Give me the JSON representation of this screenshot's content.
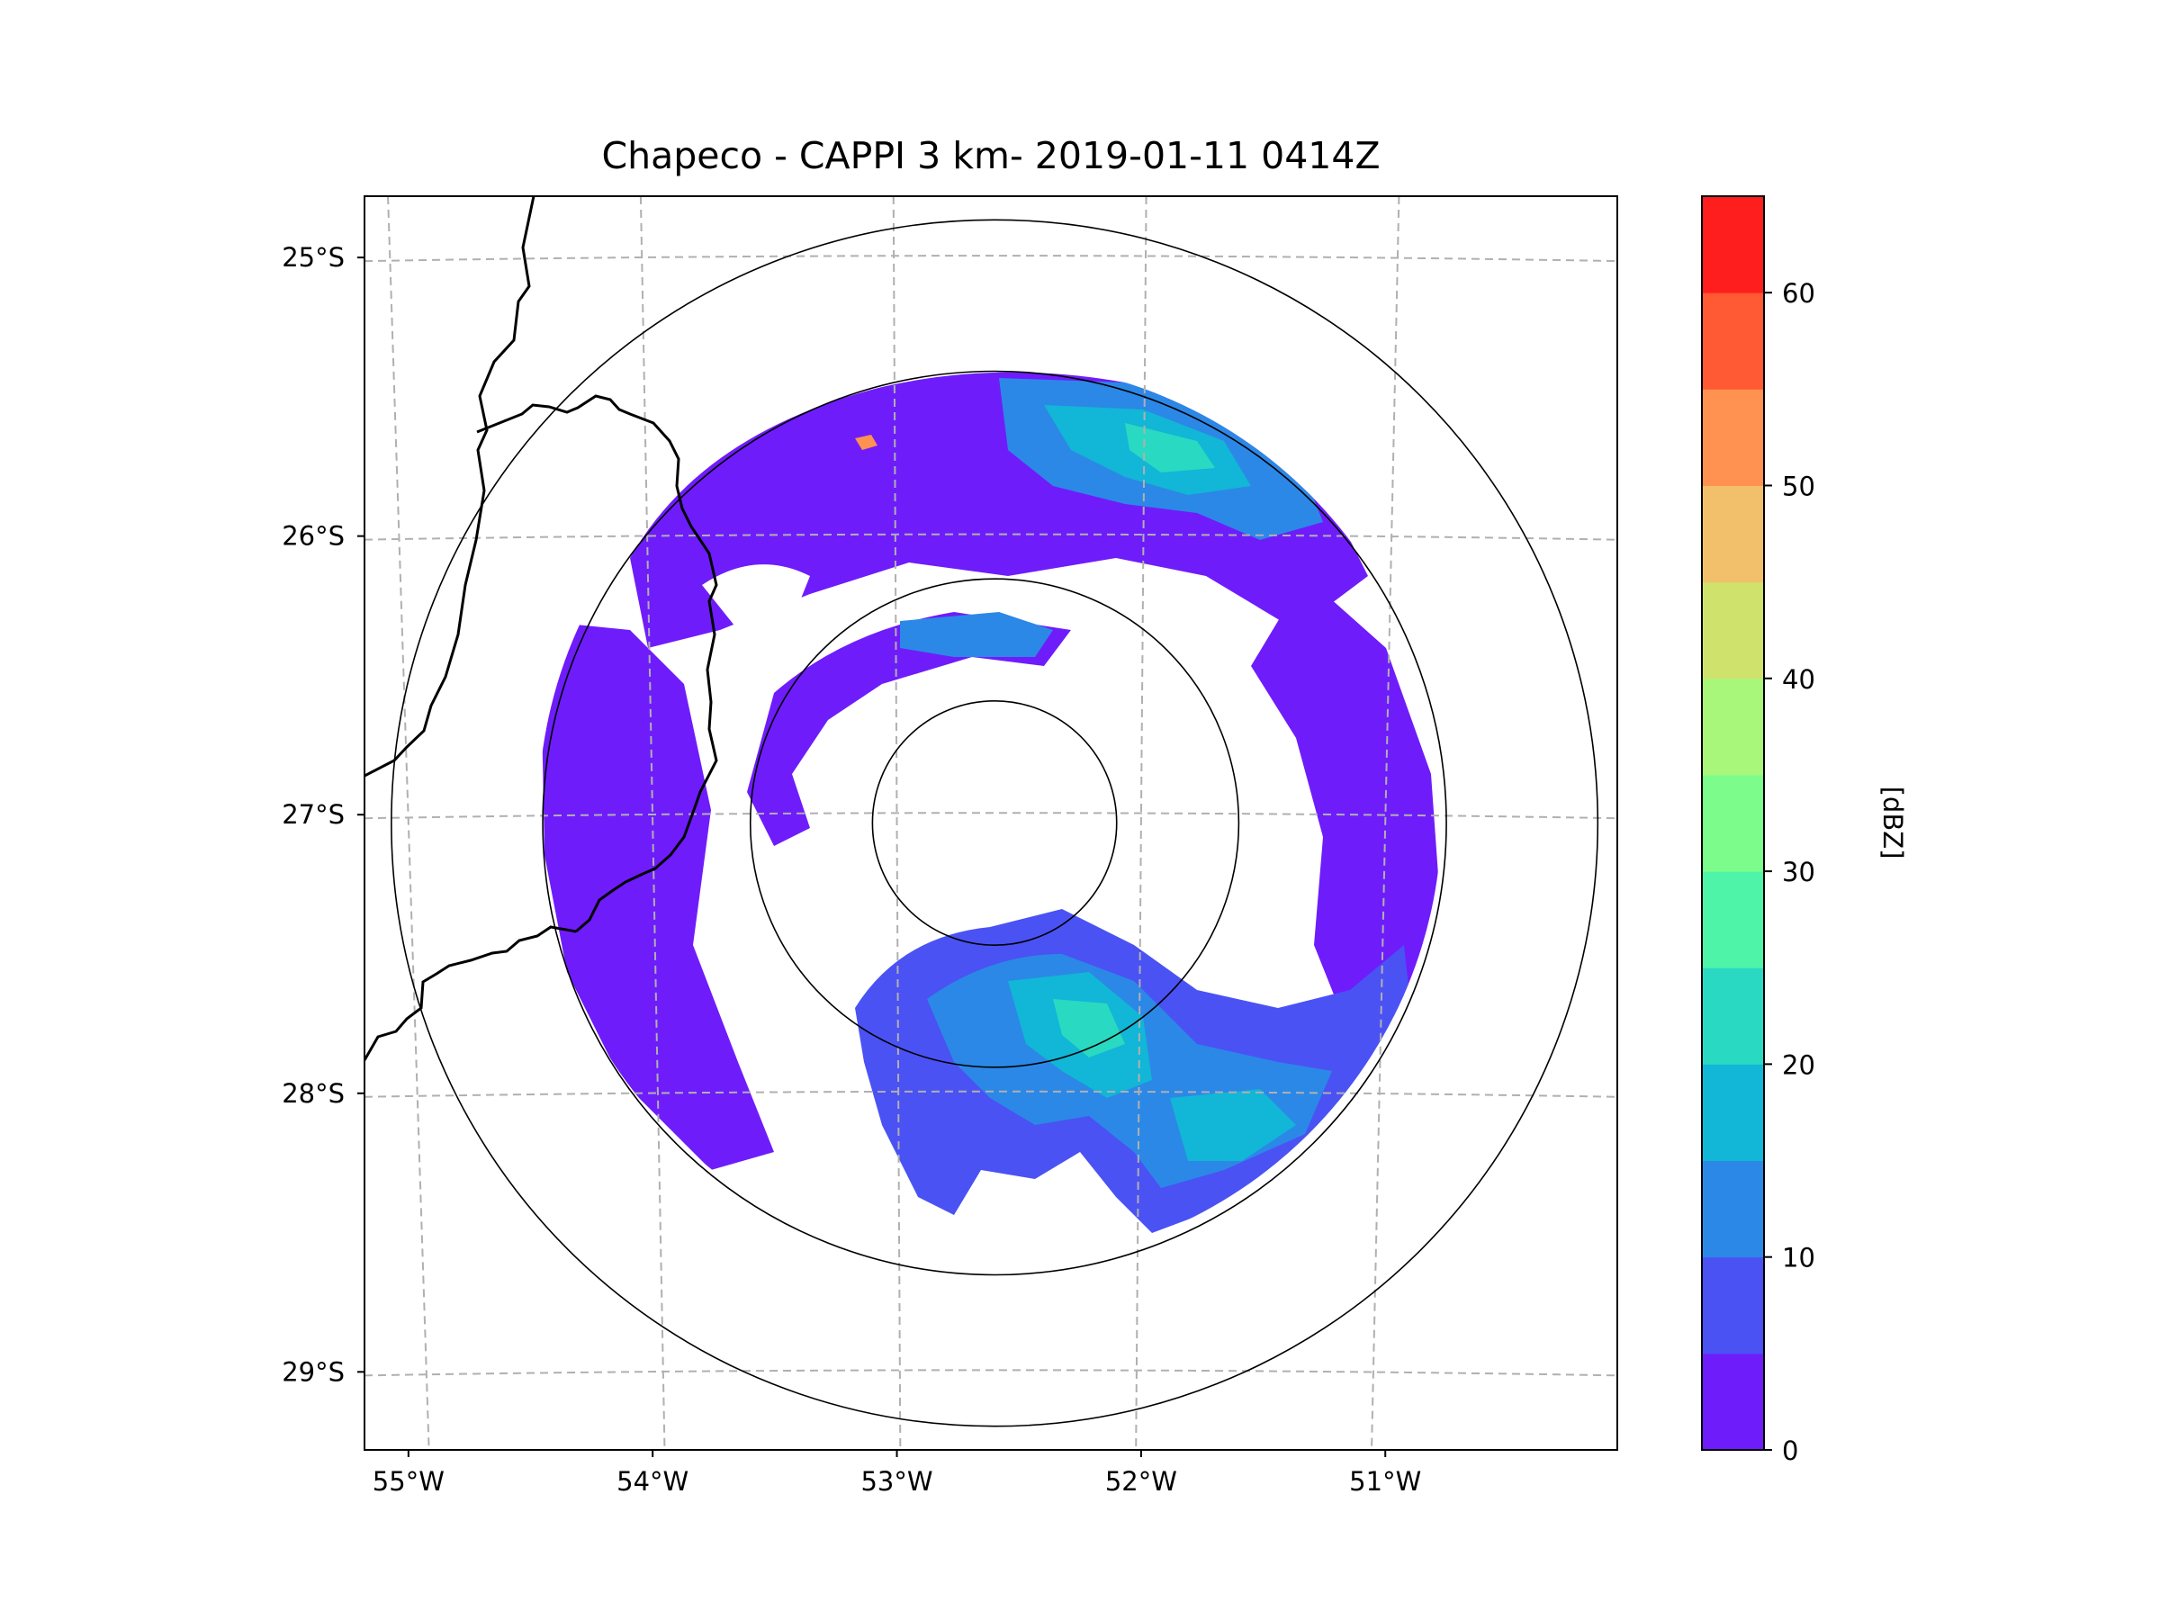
{
  "title": "Chapeco - CAPPI 3 km- 2019-01-11 0414Z",
  "map": {
    "lon_range": [
      -55.18,
      -50.05
    ],
    "lat_range": [
      -29.28,
      -24.78
    ],
    "lat_ticks": [
      {
        "value": -25,
        "label": "25°S"
      },
      {
        "value": -26,
        "label": "26°S"
      },
      {
        "value": -27,
        "label": "27°S"
      },
      {
        "value": -28,
        "label": "28°S"
      },
      {
        "value": -29,
        "label": "29°S"
      }
    ],
    "lon_ticks": [
      {
        "value": -55,
        "label": "55°W"
      },
      {
        "value": -54,
        "label": "54°W"
      },
      {
        "value": -53,
        "label": "53°W"
      },
      {
        "value": -52,
        "label": "52°W"
      },
      {
        "value": -51,
        "label": "51°W"
      }
    ],
    "radar_center": {
      "lon": -52.6,
      "lat": -27.03
    },
    "range_rings_deg": [
      0.5,
      1.0,
      1.85,
      2.47
    ]
  },
  "colorbar": {
    "label": "[dBZ]",
    "min": 0,
    "max": 65,
    "levels": [
      0,
      5,
      10,
      15,
      20,
      25,
      30,
      35,
      40,
      45,
      50,
      55,
      60,
      65
    ],
    "colors": [
      "#6f1cfb",
      "#4a52f4",
      "#2b88e7",
      "#12b6d6",
      "#2ad9c1",
      "#4ef5a8",
      "#7cfd8b",
      "#a8f77a",
      "#cfe26b",
      "#f2bf6a",
      "#ff9251",
      "#ff5a33",
      "#ff1e1e"
    ],
    "ticks": [
      {
        "value": 0,
        "label": "0"
      },
      {
        "value": 10,
        "label": "10"
      },
      {
        "value": 20,
        "label": "20"
      },
      {
        "value": 30,
        "label": "30"
      },
      {
        "value": 40,
        "label": "40"
      },
      {
        "value": 50,
        "label": "50"
      },
      {
        "value": 60,
        "label": "60"
      }
    ]
  }
}
